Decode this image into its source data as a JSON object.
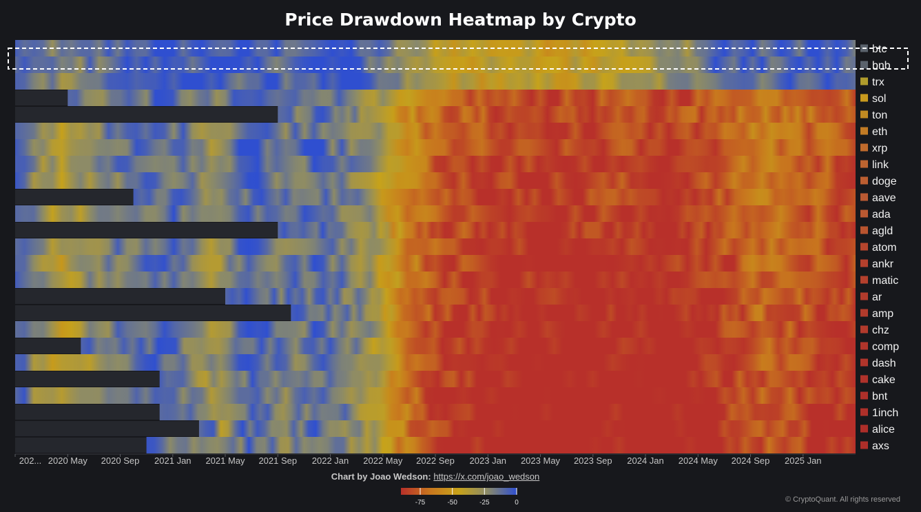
{
  "chart_data": {
    "type": "heatmap",
    "title": "Price Drawdown Heatmap by Crypto",
    "x_ticks": [
      "202...",
      "2020 May",
      "2020 Sep",
      "2021 Jan",
      "2021 May",
      "2021 Sep",
      "2022 Jan",
      "2022 May",
      "2022 Sep",
      "2023 Jan",
      "2023 May",
      "2023 Sep",
      "2024 Jan",
      "2024 May",
      "2024 Sep",
      "2025 Jan"
    ],
    "x_range": [
      "2020-01",
      "2025-05"
    ],
    "series": [
      {
        "name": "btc",
        "start": "2020-01",
        "color": "#5a626c"
      },
      {
        "name": "bnb",
        "start": "2020-01",
        "color": "#5a626c"
      },
      {
        "name": "trx",
        "start": "2020-01",
        "color": "#b09c2c"
      },
      {
        "name": "sol",
        "start": "2020-05",
        "color": "#c89a1e"
      },
      {
        "name": "ton",
        "start": "2021-09",
        "color": "#c08a22"
      },
      {
        "name": "eth",
        "start": "2020-01",
        "color": "#c27b25"
      },
      {
        "name": "xrp",
        "start": "2020-01",
        "color": "#bf6a2c"
      },
      {
        "name": "link",
        "start": "2020-01",
        "color": "#bd6430"
      },
      {
        "name": "doge",
        "start": "2020-01",
        "color": "#bc5e31"
      },
      {
        "name": "aave",
        "start": "2020-10",
        "color": "#ba5932"
      },
      {
        "name": "ada",
        "start": "2020-01",
        "color": "#ba5932"
      },
      {
        "name": "agld",
        "start": "2021-09",
        "color": "#b9542f"
      },
      {
        "name": "atom",
        "start": "2020-01",
        "color": "#b5452d"
      },
      {
        "name": "ankr",
        "start": "2020-01",
        "color": "#b4402d"
      },
      {
        "name": "matic",
        "start": "2020-01",
        "color": "#b4402d"
      },
      {
        "name": "ar",
        "start": "2021-05",
        "color": "#b23b2c"
      },
      {
        "name": "amp",
        "start": "2021-10",
        "color": "#b23b2c"
      },
      {
        "name": "chz",
        "start": "2020-01",
        "color": "#b23a2c"
      },
      {
        "name": "comp",
        "start": "2020-06",
        "color": "#b0352b"
      },
      {
        "name": "dash",
        "start": "2020-01",
        "color": "#b0352b"
      },
      {
        "name": "cake",
        "start": "2020-12",
        "color": "#af322b"
      },
      {
        "name": "bnt",
        "start": "2020-01",
        "color": "#ae302a"
      },
      {
        "name": "1inch",
        "start": "2020-12",
        "color": "#ae302a"
      },
      {
        "name": "alice",
        "start": "2021-03",
        "color": "#ad2e29"
      },
      {
        "name": "axs",
        "start": "2020-11",
        "color": "#ad2e29"
      }
    ],
    "highlighted_series": "bnb",
    "colorscale": {
      "min": -90,
      "max": 0,
      "ticks": [
        -75,
        -50,
        -25,
        0
      ],
      "tick_labels": [
        "-75",
        "-50",
        "-25",
        "0"
      ],
      "colors": [
        "#b8302a",
        "#c8761e",
        "#c7a21a",
        "#8a8a6a",
        "#2f4fd0"
      ]
    },
    "legend_position": "right"
  },
  "attribution": {
    "label": "Chart by Joao Wedson:",
    "link_text": "https://x.com/joao_wedson"
  },
  "copyright": "© CryptoQuant. All rights reserved"
}
